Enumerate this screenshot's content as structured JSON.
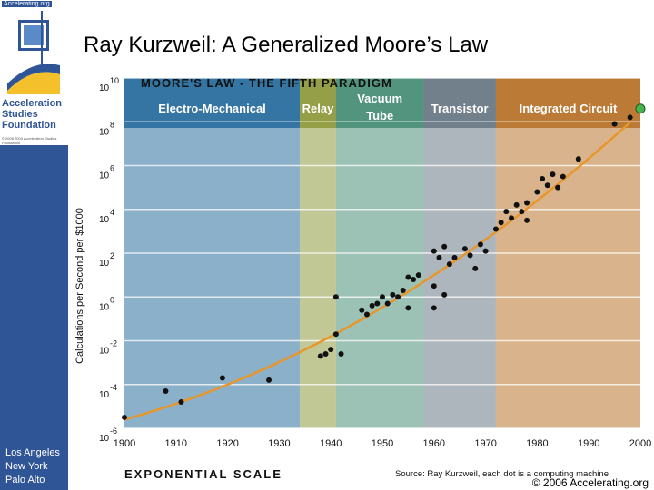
{
  "header": {
    "logo_url_text": "Accelerating.org",
    "logo_name_lines": [
      "Acceleration",
      "Studies",
      "Foundation"
    ],
    "logo_copyright": "© 2006 2003 Acceleration Studies Foundation",
    "title": "Ray Kurzweil: A Generalized Moore’s Law"
  },
  "sidebar": {
    "cities": [
      "Los Angeles",
      "New York",
      "Palo Alto"
    ]
  },
  "footer": {
    "copyright": "© 2006 Accelerating.org"
  },
  "colors": {
    "sidebar": "#2f5597",
    "band_electro": "#2b6f9e",
    "band_relay": "#8f9a3e",
    "band_tube": "#4a8f78",
    "band_transistor": "#6c7a86",
    "band_ic": "#b8742c",
    "trend_line": "#e8962a",
    "points": "#111111",
    "highlight_marker": "#4caf50"
  },
  "chart_data": {
    "type": "scatter",
    "title": "MOORE'S LAW - THE FIFTH PARADIGM",
    "ylabel": "Calculations per Second per $1000",
    "bottom_label": "EXPONENTIAL SCALE",
    "source": "Source: Ray Kurzweil, each dot is a computing machine",
    "xlim": [
      1900,
      2000
    ],
    "ylim": [
      -6,
      10
    ],
    "x_ticks": [
      "1900",
      "1910",
      "1920",
      "1930",
      "1940",
      "1950",
      "1960",
      "1970",
      "1980",
      "1990",
      "2000"
    ],
    "y_tick_base": "10",
    "y_tick_exponents": [
      "10",
      "8",
      "6",
      "4",
      "2",
      "0",
      "-2",
      "-4",
      "-6"
    ],
    "y_tick_values": [
      10,
      8,
      6,
      4,
      2,
      0,
      -2,
      -4,
      -6
    ],
    "paradigms": [
      {
        "label": "Electro-Mechanical",
        "start": 1900,
        "end": 1934
      },
      {
        "label": "Relay",
        "start": 1934,
        "end": 1941
      },
      {
        "label": "Vacuum Tube",
        "start": 1941,
        "end": 1958
      },
      {
        "label": "Transistor",
        "start": 1958,
        "end": 1972
      },
      {
        "label": "Integrated Circuit",
        "start": 1972,
        "end": 2000
      }
    ],
    "series": [
      {
        "points": [
          [
            1900,
            -5.5
          ],
          [
            1908,
            -4.3
          ],
          [
            1911,
            -4.8
          ],
          [
            1919,
            -3.7
          ],
          [
            1928,
            -3.8
          ],
          [
            1938,
            -2.7
          ],
          [
            1939,
            -2.6
          ],
          [
            1940,
            -2.4
          ],
          [
            1941,
            -1.7
          ],
          [
            1942,
            -2.6
          ],
          [
            1941,
            0.0
          ],
          [
            1946,
            -0.6
          ],
          [
            1947,
            -0.8
          ],
          [
            1948,
            -0.4
          ],
          [
            1949,
            -0.3
          ],
          [
            1950,
            0.0
          ],
          [
            1951,
            -0.3
          ],
          [
            1952,
            0.1
          ],
          [
            1953,
            0.0
          ],
          [
            1954,
            0.3
          ],
          [
            1955,
            0.9
          ],
          [
            1955,
            -0.5
          ],
          [
            1956,
            0.8
          ],
          [
            1957,
            1.0
          ],
          [
            1960,
            0.5
          ],
          [
            1960,
            2.1
          ],
          [
            1960,
            -0.5
          ],
          [
            1961,
            1.8
          ],
          [
            1962,
            2.3
          ],
          [
            1962,
            0.1
          ],
          [
            1963,
            1.5
          ],
          [
            1964,
            1.8
          ],
          [
            1966,
            2.2
          ],
          [
            1967,
            1.9
          ],
          [
            1968,
            1.3
          ],
          [
            1969,
            2.4
          ],
          [
            1970,
            2.1
          ],
          [
            1972,
            3.1
          ],
          [
            1973,
            3.4
          ],
          [
            1974,
            3.9
          ],
          [
            1975,
            3.6
          ],
          [
            1976,
            4.2
          ],
          [
            1977,
            3.9
          ],
          [
            1978,
            3.5
          ],
          [
            1978,
            4.3
          ],
          [
            1980,
            4.8
          ],
          [
            1981,
            5.4
          ],
          [
            1982,
            5.1
          ],
          [
            1983,
            5.6
          ],
          [
            1984,
            5.0
          ],
          [
            1985,
            5.5
          ],
          [
            1988,
            6.3
          ],
          [
            1995,
            7.9
          ],
          [
            1998,
            8.2
          ]
        ]
      }
    ],
    "trend": {
      "type": "exponential-fit",
      "color": "#e8962a"
    },
    "highlight_point": [
      2000,
      8.6
    ]
  }
}
